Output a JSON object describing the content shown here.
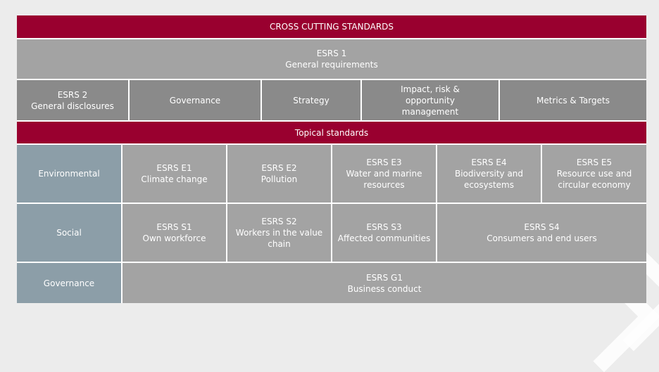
{
  "cross_cutting": {
    "title": "CROSS CUTTING STANDARDS",
    "esrs1": {
      "code": "ESRS 1",
      "name": "General requirements"
    },
    "esrs2": {
      "code": "ESRS 2",
      "name": "General disclosures"
    },
    "pillars": [
      "Governance",
      "Strategy",
      "Impact, risk & opportunity management",
      "Metrics & Targets"
    ]
  },
  "topical": {
    "title": "Topical standards",
    "environmental": {
      "label": "Environmental",
      "items": [
        {
          "code": "ESRS E1",
          "name": "Climate change"
        },
        {
          "code": "ESRS E2",
          "name": "Pollution"
        },
        {
          "code": "ESRS E3",
          "name": "Water and marine resources"
        },
        {
          "code": "ESRS E4",
          "name": "Biodiversity and ecosystems"
        },
        {
          "code": "ESRS E5",
          "name": "Resource use and circular economy"
        }
      ]
    },
    "social": {
      "label": "Social",
      "items": [
        {
          "code": "ESRS S1",
          "name": "Own workforce"
        },
        {
          "code": "ESRS S2",
          "name": "Workers in the value chain"
        },
        {
          "code": "ESRS S3",
          "name": "Affected communities"
        },
        {
          "code": "ESRS S4",
          "name": "Consumers and end users"
        }
      ]
    },
    "governance": {
      "label": "Governance",
      "items": [
        {
          "code": "ESRS G1",
          "name": "Business conduct"
        }
      ]
    }
  },
  "colors": {
    "header_red": "#99002f",
    "light_gray": "#a3a3a3",
    "dark_gray": "#8a8a8a",
    "category_blue": "#8c9ea8"
  }
}
